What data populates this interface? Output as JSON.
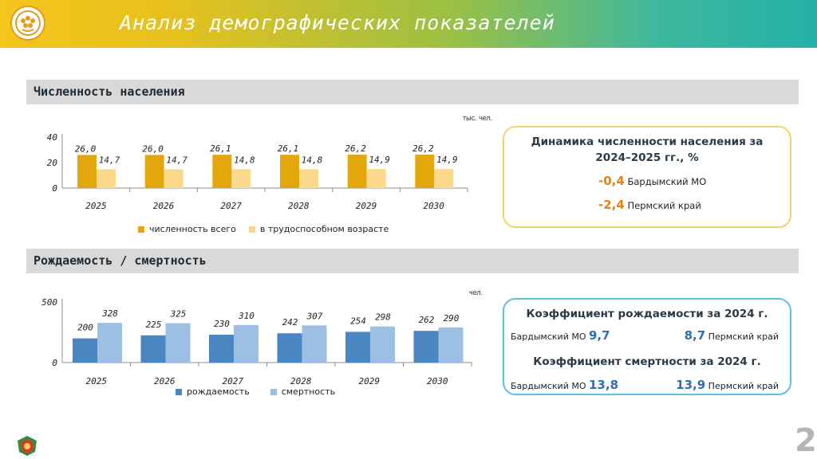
{
  "header": {
    "title": "Анализ демографических показателей",
    "colors": {
      "gradient_start": "#f4c51a",
      "gradient_end": "#24b0a8"
    }
  },
  "section1": {
    "title": "Численность населения",
    "unit": "тыс. чел.",
    "legend": [
      "численность всего",
      "в трудоспособном возрасте"
    ]
  },
  "section2": {
    "title": "Рождаемость / смертность",
    "unit": "чел.",
    "legend": [
      "рождаемость",
      "смертность"
    ]
  },
  "chart_data": [
    {
      "type": "bar",
      "categories": [
        "2025",
        "2026",
        "2027",
        "2028",
        "2029",
        "2030"
      ],
      "series": [
        {
          "name": "численность всего",
          "values": [
            26.0,
            26.0,
            26.1,
            26.1,
            26.2,
            26.2
          ],
          "labels": [
            "26,0",
            "26,0",
            "26,1",
            "26,1",
            "26,2",
            "26,2"
          ],
          "color": "#e2a70b"
        },
        {
          "name": "в трудоспособном возрасте",
          "values": [
            14.7,
            14.7,
            14.8,
            14.8,
            14.9,
            14.9
          ],
          "labels": [
            "14,7",
            "14,7",
            "14,8",
            "14,8",
            "14,9",
            "14,9"
          ],
          "color": "#fbd98c"
        }
      ],
      "yticks": [
        "0",
        "20",
        "40"
      ],
      "ylim": [
        0,
        40
      ],
      "grid": false,
      "legend_position": "bottom"
    },
    {
      "type": "bar",
      "categories": [
        "2025",
        "2026",
        "2027",
        "2028",
        "2029",
        "2030"
      ],
      "series": [
        {
          "name": "рождаемость",
          "values": [
            200,
            225,
            230,
            242,
            254,
            262
          ],
          "labels": [
            "200",
            "225",
            "230",
            "242",
            "254",
            "262"
          ],
          "color": "#4a86c2"
        },
        {
          "name": "смертность",
          "values": [
            328,
            325,
            310,
            307,
            298,
            290
          ],
          "labels": [
            "328",
            "325",
            "310",
            "307",
            "298",
            "290"
          ],
          "color": "#9dbfe3"
        }
      ],
      "yticks": [
        "0",
        "500"
      ],
      "ylim": [
        0,
        500
      ],
      "grid": false,
      "legend_position": "bottom"
    }
  ],
  "box1": {
    "title_line1": "Динамика численности населения за",
    "title_line2": "2024–2025 гг., %",
    "row1_value": "-0,4",
    "row1_label": "Бардымский МО",
    "row2_value": "-2,4",
    "row2_label": "Пермский край"
  },
  "box2": {
    "birth_title": "Коэффициент рождаемости за 2024 г.",
    "birth_left_label": "Бардымский МО",
    "birth_left_value": "9,7",
    "birth_right_value": "8,7",
    "birth_right_label": "Пермский край",
    "death_title": "Коэффициент смертности за 2024 г.",
    "death_left_label": "Бардымский МО",
    "death_left_value": "13,8",
    "death_right_value": "13,9",
    "death_right_label": "Пермский край"
  },
  "footer": {
    "page_number": "2"
  }
}
